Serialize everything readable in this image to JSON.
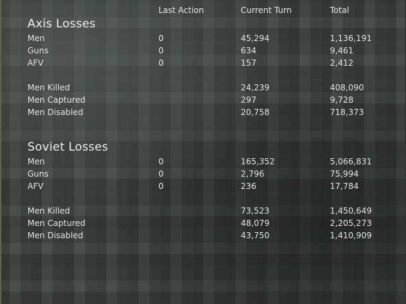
{
  "columns": {
    "last_action": "Last Action",
    "current_turn": "Current Turn",
    "total": "Total"
  },
  "axis": {
    "title": "Axis Losses",
    "rows": [
      {
        "label": "Men",
        "last_action": "0",
        "current_turn": "45,294",
        "total": "1,136,191"
      },
      {
        "label": "Guns",
        "last_action": "0",
        "current_turn": "634",
        "total": "9,461"
      },
      {
        "label": "AFV",
        "last_action": "0",
        "current_turn": "157",
        "total": "2,412"
      },
      {
        "label": "Men Killed",
        "last_action": "",
        "current_turn": "24,239",
        "total": "408,090"
      },
      {
        "label": "Men Captured",
        "last_action": "",
        "current_turn": "297",
        "total": "9,728"
      },
      {
        "label": "Men Disabled",
        "last_action": "",
        "current_turn": "20,758",
        "total": "718,373"
      }
    ]
  },
  "soviet": {
    "title": "Soviet Losses",
    "rows": [
      {
        "label": "Men",
        "last_action": "0",
        "current_turn": "165,352",
        "total": "5,066,831"
      },
      {
        "label": "Guns",
        "last_action": "0",
        "current_turn": "2,796",
        "total": "75,994"
      },
      {
        "label": "AFV",
        "last_action": "0",
        "current_turn": "236",
        "total": "17,784"
      },
      {
        "label": "Men Killed",
        "last_action": "",
        "current_turn": "73,523",
        "total": "1,450,649"
      },
      {
        "label": "Men Captured",
        "last_action": "",
        "current_turn": "48,079",
        "total": "2,205,273"
      },
      {
        "label": "Men Disabled",
        "last_action": "",
        "current_turn": "43,750",
        "total": "1,410,909"
      }
    ]
  }
}
